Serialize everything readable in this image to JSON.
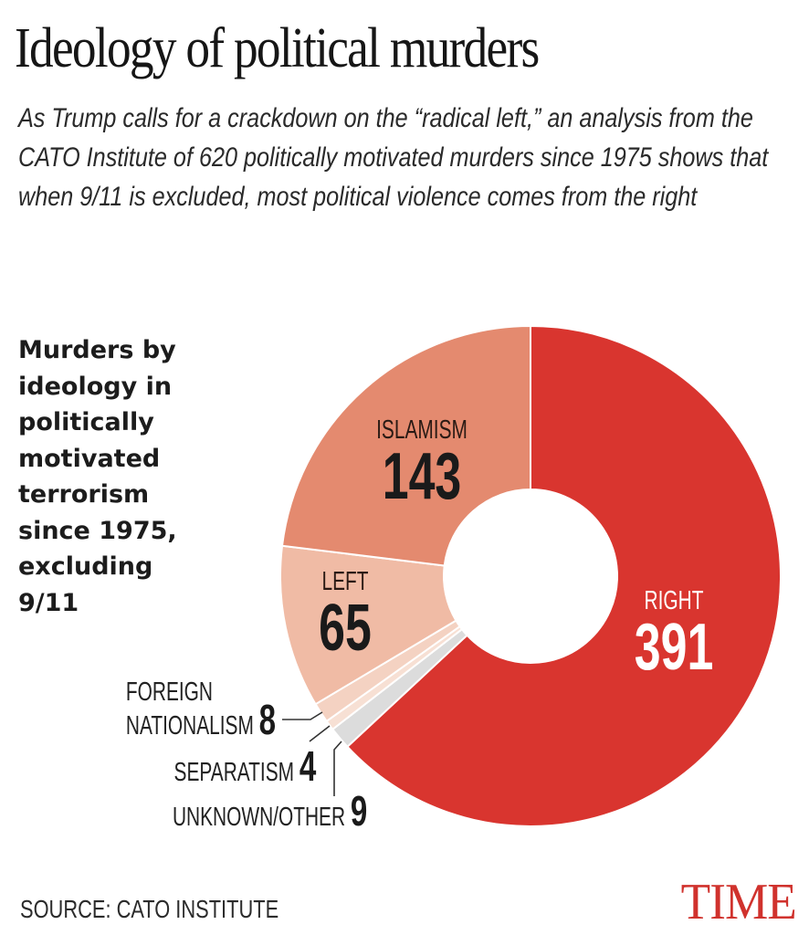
{
  "header": {
    "title": "Ideology of political murders",
    "subtitle": "As Trump calls for a crackdown on the “radical left,” an analysis from the CATO Institute of 620 politically motivated murders since 1975 shows that when 9/11 is excluded, most political violence comes from the right"
  },
  "chart_heading": "Murders by ideology in politically motivated terrorism since 1975, excluding 9/11",
  "labels": {
    "islamism": {
      "category": "ISLAMISM",
      "value": "143"
    },
    "left": {
      "category": "LEFT",
      "value": "65"
    },
    "right": {
      "category": "RIGHT",
      "value": "391"
    },
    "foreign_nationalism": {
      "category_line1": "FOREIGN",
      "category_line2": "NATIONALISM",
      "value": "8"
    },
    "separatism": {
      "category": "SEPARATISM",
      "value": "4"
    },
    "unknown_other": {
      "category": "UNKNOWN/OTHER",
      "value": "9"
    }
  },
  "footer": {
    "source": "SOURCE: CATO INSTITUTE",
    "brand": "TIME"
  },
  "colors": {
    "right": "#d9352f",
    "islamism": "#e48a6f",
    "left": "#f0bba5",
    "foreign_nationalism": "#f4d2c2",
    "separatism": "#f7e0d4",
    "unknown_other": "#dcdcdc",
    "brand": "#d0322d"
  },
  "chart_data": {
    "type": "pie",
    "subtype": "donut",
    "title": "Ideology of political murders",
    "subtitle": "Murders by ideology in politically motivated terrorism since 1975, excluding 9/11",
    "categories": [
      "Right",
      "Unknown/Other",
      "Separatism",
      "Foreign Nationalism",
      "Left",
      "Islamism"
    ],
    "values": [
      391,
      9,
      4,
      8,
      65,
      143
    ],
    "total": 620,
    "start_angle": "12 o'clock, clockwise",
    "legend": "direct labels",
    "source": "CATO Institute"
  }
}
